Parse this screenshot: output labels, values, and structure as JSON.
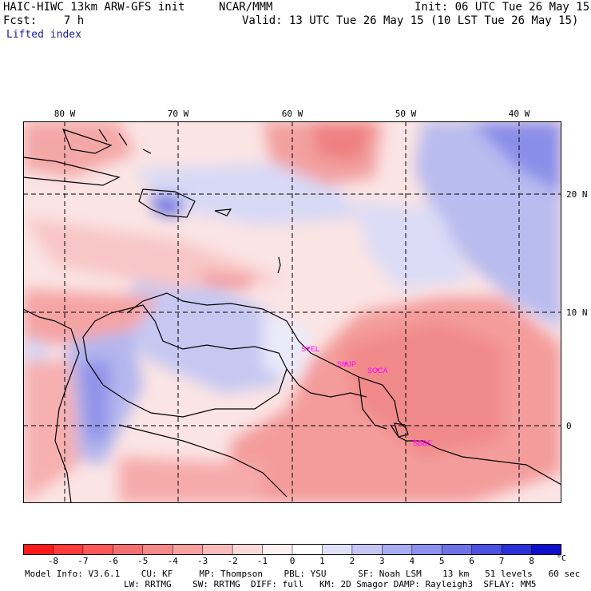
{
  "header": {
    "line1_left": "HAIC-HIWC 13km ARW-GFS init",
    "line1_mid": "NCAR/MMM",
    "line1_right": "Init: 06 UTC Tue 26 May 15",
    "line2_left": "Fcst:    7 h",
    "line2_right": "Valid: 13 UTC Tue 26 May 15 (10 LST Tue 26 May 15)",
    "field": "Lifted index"
  },
  "map": {
    "longitude_labels": [
      "80 W",
      "70 W",
      "60 W",
      "50 W",
      "40 W"
    ],
    "latitude_labels": [
      "20 N",
      "10 N",
      "0"
    ],
    "stations": [
      "SYEL",
      "SMJP",
      "SOCA",
      "SBBE"
    ],
    "background_color": "#fbe6e6"
  },
  "colorbar": {
    "labels": [
      "-8",
      "-7",
      "-6",
      "-5",
      "-4",
      "-3",
      "-2",
      "-1",
      "0",
      "1",
      "2",
      "3",
      "4",
      "5",
      "6",
      "7",
      "8"
    ],
    "unit": "°C",
    "colors": [
      "#ff1a1a",
      "#ff3a3a",
      "#ff5757",
      "#f47070",
      "#f58888",
      "#f7a1a1",
      "#f9bcbc",
      "#fcd9d9",
      "#fff1f1",
      "#ffffff",
      "#dfe0f8",
      "#c5c6f4",
      "#a9acf0",
      "#8d90ec",
      "#6e72e6",
      "#4c51e0",
      "#2a30d8",
      "#1010cc"
    ]
  },
  "footer": {
    "line1": "Model Info: V3.6.1    CU: KF     MP: Thompson    PBL: YSU      SF: Noah LSM    13 km   51 levels   60 sec",
    "line2": "LW: RRTMG    SW: RRTMG  DIFF: full   KM: 2D Smagor DAMP: Rayleigh3  SFLAY: MM5"
  }
}
